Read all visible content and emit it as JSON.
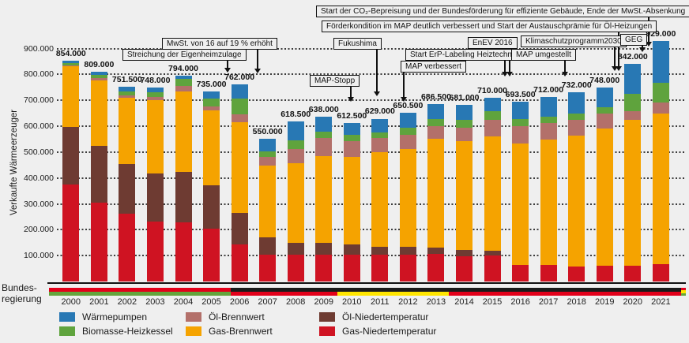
{
  "chart_data": {
    "type": "bar",
    "stacked": true,
    "ylabel": "Verkaufte Wärmeerzeuger",
    "ylim": [
      0,
      940000
    ],
    "grid": "horizontal-dotted",
    "y_axis": {
      "ticks": [
        {
          "value": 900,
          "label": "900.000"
        },
        {
          "value": 800,
          "label": "800.000"
        },
        {
          "value": 700,
          "label": "700.000"
        },
        {
          "value": 600,
          "label": "600.000"
        },
        {
          "value": 500,
          "label": "500.000"
        },
        {
          "value": 400,
          "label": "400.000"
        },
        {
          "value": 300,
          "label": "300.000"
        },
        {
          "value": 200,
          "label": "200.000"
        },
        {
          "value": 100,
          "label": "100.000"
        }
      ]
    },
    "categories": [
      "2000",
      "2001",
      "2002",
      "2003",
      "2004",
      "2005",
      "2006",
      "2007",
      "2008",
      "2009",
      "2010",
      "2011",
      "2012",
      "2013",
      "2014",
      "2015",
      "2016",
      "2017",
      "2018",
      "2019",
      "2020",
      "2021"
    ],
    "totals": [
      854000,
      809000,
      751500,
      748000,
      794000,
      735000,
      762000,
      550000,
      618500,
      638000,
      612500,
      629000,
      650500,
      686500,
      681000,
      710000,
      693500,
      712000,
      732000,
      748000,
      842000,
      929000
    ],
    "total_labels": [
      "854.000",
      "809.000",
      "751.500",
      "748.000",
      "794.000",
      "735.000",
      "762.000",
      "550.000",
      "618.500",
      "638.000",
      "612.500",
      "629.000",
      "650.500",
      "686.500",
      "681.000",
      "710.000",
      "693.500",
      "712.000",
      "732.000",
      "748.000",
      "842.000",
      "929.000"
    ],
    "series": [
      {
        "name": "Gas-Niedertemperatur",
        "color": "#cf1322",
        "values": [
          376000,
          305000,
          262000,
          233000,
          228000,
          205000,
          144000,
          105000,
          105000,
          105000,
          105000,
          103000,
          105000,
          108000,
          97000,
          99000,
          64000,
          64000,
          58000,
          62000,
          60000,
          68000
        ]
      },
      {
        "name": "Öl-Niedertemperatur",
        "color": "#6e3b32",
        "values": [
          221000,
          218000,
          191000,
          184000,
          194000,
          166000,
          120000,
          66000,
          44000,
          43000,
          39000,
          30000,
          28000,
          22000,
          26000,
          19000,
          0,
          0,
          0,
          0,
          0,
          0
        ]
      },
      {
        "name": "Gas-Brennwert",
        "color": "#f5a300",
        "values": [
          234000,
          253000,
          257000,
          285000,
          311000,
          291000,
          352000,
          277000,
          308000,
          337000,
          336000,
          366000,
          380000,
          422000,
          418000,
          443000,
          470000,
          485000,
          506000,
          528000,
          563000,
          582000
        ]
      },
      {
        "name": "Öl-Brennwert",
        "color": "#b3706a",
        "values": [
          5000,
          10000,
          10000,
          10000,
          22000,
          15000,
          31000,
          34000,
          56000,
          69000,
          62000,
          55000,
          53000,
          48000,
          54000,
          63000,
          65000,
          62000,
          62000,
          60000,
          36000,
          43000
        ]
      },
      {
        "name": "Biomasse-Heizkessel",
        "color": "#5fa33d",
        "values": [
          8000,
          11000,
          15000,
          18000,
          27000,
          31000,
          59000,
          20000,
          31000,
          26000,
          25000,
          23000,
          29000,
          28000,
          29000,
          33000,
          30000,
          27000,
          24000,
          22000,
          65000,
          74000
        ]
      },
      {
        "name": "Wärmepumpen",
        "color": "#2878b4",
        "values": [
          10000,
          12000,
          16500,
          18000,
          12000,
          27000,
          56000,
          48000,
          74500,
          58000,
          45500,
          52000,
          55500,
          58500,
          57000,
          53000,
          64500,
          74000,
          82000,
          76000,
          118000,
          162000
        ]
      }
    ]
  },
  "annotations": [
    {
      "id": "co2",
      "text": "Start der CO₂-Bepreisung und der Bundesförderung für effiziente Gebäude, Ende der MwSt.-Absenkung"
    },
    {
      "id": "foerder",
      "text": "Förderkondition im MAP deutlich verbessert und Start der Austauschprämie für Öl-Heizungen"
    },
    {
      "id": "klima",
      "text": "Klimaschutzprogramm2030"
    },
    {
      "id": "geg",
      "text": "GEG"
    },
    {
      "id": "mwst",
      "text": "MwSt. von 16 auf 19 % erhöht"
    },
    {
      "id": "streichung",
      "text": "Streichung der Eigenheimzulage"
    },
    {
      "id": "mapstopp",
      "text": "MAP-Stopp"
    },
    {
      "id": "fukushima",
      "text": "Fukushima"
    },
    {
      "id": "mapverb",
      "text": "MAP verbessert"
    },
    {
      "id": "erp",
      "text": "Start ErP-Labeling Heiztechnik"
    },
    {
      "id": "enev",
      "text": "EnEV 2016"
    },
    {
      "id": "mapumg",
      "text": "MAP umgestellt"
    }
  ],
  "government_bar": {
    "label_line1": "Bundes-",
    "label_line2": "regierung",
    "segments": [
      {
        "widthPct": 28.5,
        "stripes": [
          "#e2001a",
          "#64a53c"
        ]
      },
      {
        "widthPct": 16.8,
        "stripes": [
          "#1a1a1a",
          "#e2001a"
        ]
      },
      {
        "widthPct": 17.5,
        "stripes": [
          "#1a1a1a",
          "#ffe500"
        ]
      },
      {
        "widthPct": 36.5,
        "stripes": [
          "#1a1a1a",
          "#e2001a"
        ]
      },
      {
        "widthPct": 0.7,
        "stripes": [
          "#e2001a",
          "#ffe500",
          "#64a53c"
        ]
      }
    ]
  },
  "legend": {
    "items": [
      {
        "label": "Wärmepumpen",
        "color": "#2878b4"
      },
      {
        "label": "Biomasse-Heizkessel",
        "color": "#5fa33d"
      },
      {
        "label": "Öl-Brennwert",
        "color": "#b3706a"
      },
      {
        "label": "Gas-Brennwert",
        "color": "#f5a300"
      },
      {
        "label": "Öl-Niedertemperatur",
        "color": "#6e3b32"
      },
      {
        "label": "Gas-Niedertemperatur",
        "color": "#cf1322"
      }
    ]
  }
}
